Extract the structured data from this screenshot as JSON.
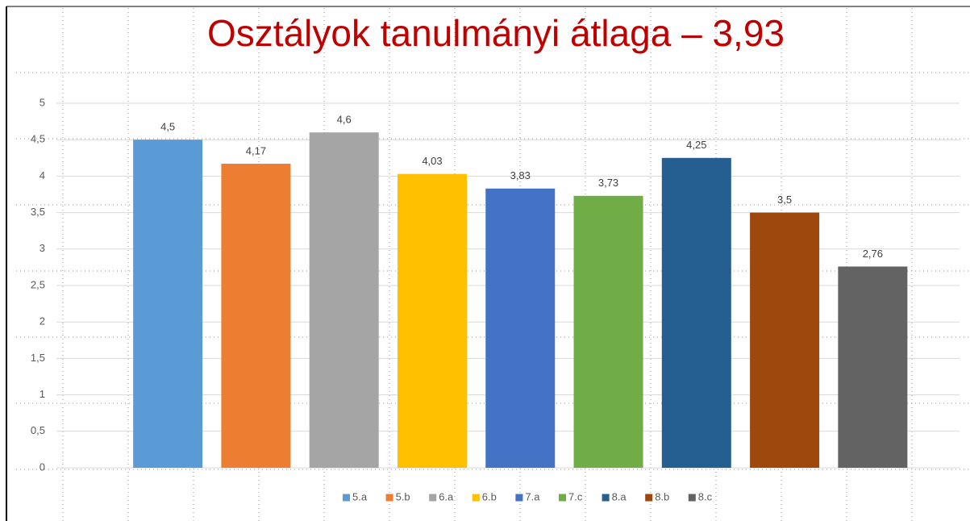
{
  "chart_data": {
    "type": "bar",
    "title": "Osztályok tanulmányi átlaga – 3,93",
    "series": [
      {
        "name": "5.a",
        "color": "#5b9bd5",
        "values": [
          4.5
        ],
        "value_labels": [
          "4,5"
        ]
      },
      {
        "name": "5.b",
        "color": "#ed7d31",
        "values": [
          4.17
        ],
        "value_labels": [
          "4,17"
        ]
      },
      {
        "name": "6.a",
        "color": "#a5a5a5",
        "values": [
          4.6
        ],
        "value_labels": [
          "4,6"
        ]
      },
      {
        "name": "6.b",
        "color": "#ffc000",
        "values": [
          4.03
        ],
        "value_labels": [
          "4,03"
        ]
      },
      {
        "name": "7.a",
        "color": "#4472c4",
        "values": [
          3.83
        ],
        "value_labels": [
          "3,83"
        ]
      },
      {
        "name": "7.c",
        "color": "#70ad47",
        "values": [
          3.73
        ],
        "value_labels": [
          "3,73"
        ]
      },
      {
        "name": "8.a",
        "color": "#255e91",
        "values": [
          4.25
        ],
        "value_labels": [
          "4,25"
        ]
      },
      {
        "name": "8.b",
        "color": "#9e480e",
        "values": [
          3.5
        ],
        "value_labels": [
          "3,5"
        ]
      },
      {
        "name": "8.c",
        "color": "#636363",
        "values": [
          2.76
        ],
        "value_labels": [
          "2,76"
        ]
      }
    ],
    "ylim": [
      0,
      5
    ],
    "yticks": [
      0,
      {
        "value": 0.5,
        "label": "0,5"
      },
      1,
      {
        "value": 1.5,
        "label": "1,5"
      },
      2,
      {
        "value": 2.5,
        "label": "2,5"
      },
      3,
      {
        "value": 3.5,
        "label": "3,5"
      },
      4,
      {
        "value": 4.5,
        "label": "4,5"
      },
      5
    ],
    "grid": true,
    "legend": "bottom"
  }
}
